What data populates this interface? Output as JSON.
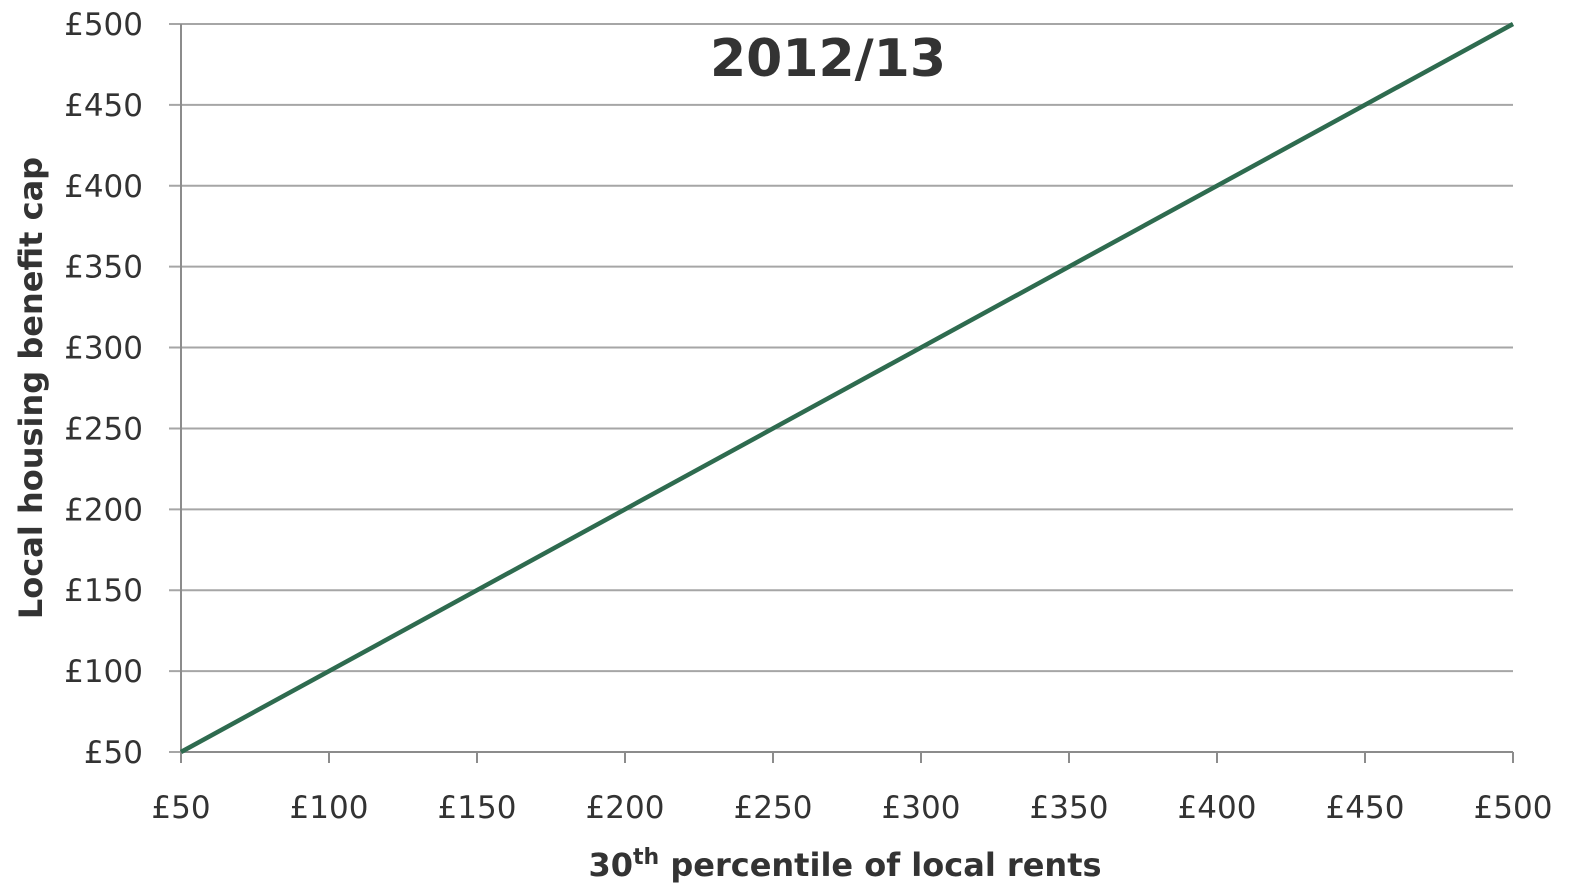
{
  "chart_data": {
    "type": "line",
    "title": "2012/13",
    "xlabel": {
      "main": "30",
      "sup": "th",
      "rest": " percentile of local rents"
    },
    "ylabel": "Local housing benefit cap",
    "xlim": [
      50,
      500
    ],
    "ylim": [
      50,
      500
    ],
    "x_ticks": [
      50,
      100,
      150,
      200,
      250,
      300,
      350,
      400,
      450,
      500
    ],
    "y_ticks": [
      50,
      100,
      150,
      200,
      250,
      300,
      350,
      400,
      450,
      500
    ],
    "x_tick_labels": [
      "£50",
      "£100",
      "£150",
      "£200",
      "£250",
      "£300",
      "£350",
      "£400",
      "£450",
      "£500"
    ],
    "y_tick_labels": [
      "£50",
      "£100",
      "£150",
      "£200",
      "£250",
      "£300",
      "£350",
      "£400",
      "£450",
      "£500"
    ],
    "grid": "horizontal",
    "series": [
      {
        "color": "#2e6b4f",
        "x": [
          50,
          500
        ],
        "y": [
          50,
          500
        ]
      }
    ],
    "colors": {
      "grid": "#a6a6a6",
      "axis": "#8c8c8c",
      "text": "#333333"
    }
  }
}
